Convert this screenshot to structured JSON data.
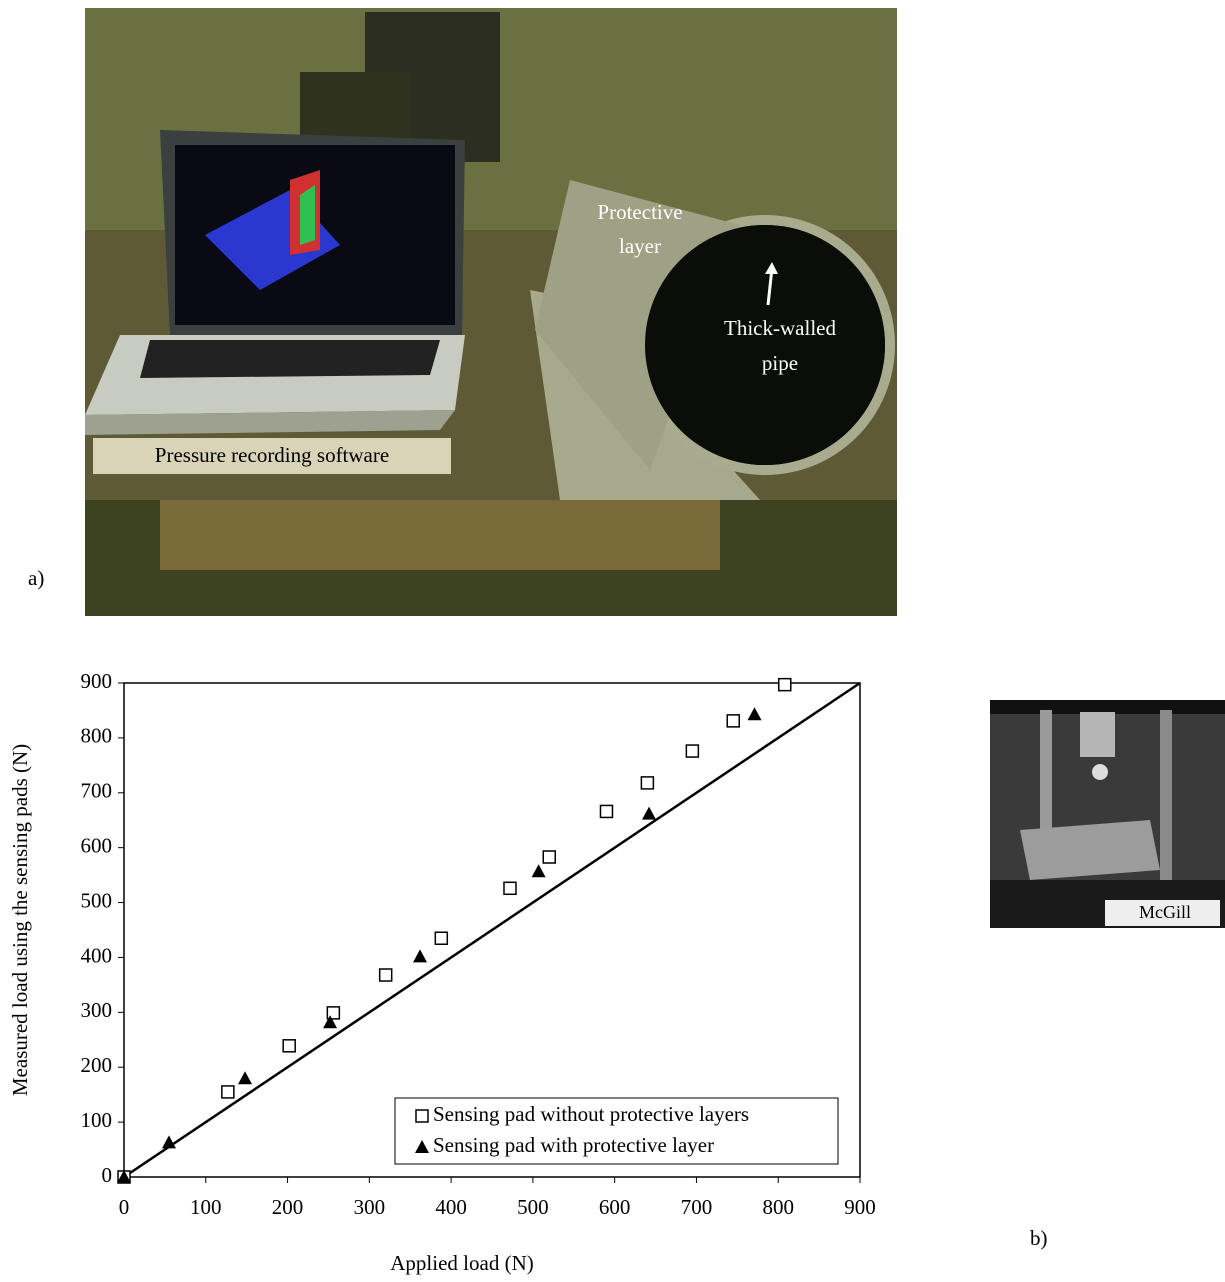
{
  "panel_a": {
    "label": "a)",
    "annotations": {
      "protective": [
        "Protective",
        "layer"
      ],
      "pipe": [
        "Thick-walled",
        "pipe"
      ],
      "software": "Pressure recording software"
    }
  },
  "panel_b": {
    "label": "b)",
    "logo": "McGill"
  },
  "chart_data": {
    "type": "scatter",
    "xlabel": "Applied load (N)",
    "ylabel": "Measured load using the sensing pads (N)",
    "xlim": [
      0,
      900
    ],
    "ylim": [
      0,
      900
    ],
    "xticks": [
      0,
      100,
      200,
      300,
      400,
      500,
      600,
      700,
      800,
      900
    ],
    "yticks": [
      0,
      100,
      200,
      300,
      400,
      500,
      600,
      700,
      800,
      900
    ],
    "reference_line": {
      "x": [
        0,
        900
      ],
      "y": [
        0,
        900
      ],
      "color": "#000000"
    },
    "series": [
      {
        "name": "Sensing pad without protective layers",
        "marker": "square",
        "color": "#000000",
        "x": [
          0,
          127,
          202,
          256,
          320,
          388,
          472,
          520,
          590,
          640,
          695,
          745,
          808
        ],
        "values": [
          0,
          155,
          239,
          299,
          368,
          435,
          526,
          583,
          666,
          718,
          776,
          831,
          897
        ]
      },
      {
        "name": "Sensing pad with protective layer",
        "marker": "triangle",
        "color": "#000000",
        "x": [
          0,
          55,
          148,
          252,
          362,
          507,
          642,
          771
        ],
        "values": [
          0,
          63,
          180,
          282,
          402,
          557,
          662,
          843
        ]
      }
    ],
    "legend": "lower-right"
  }
}
